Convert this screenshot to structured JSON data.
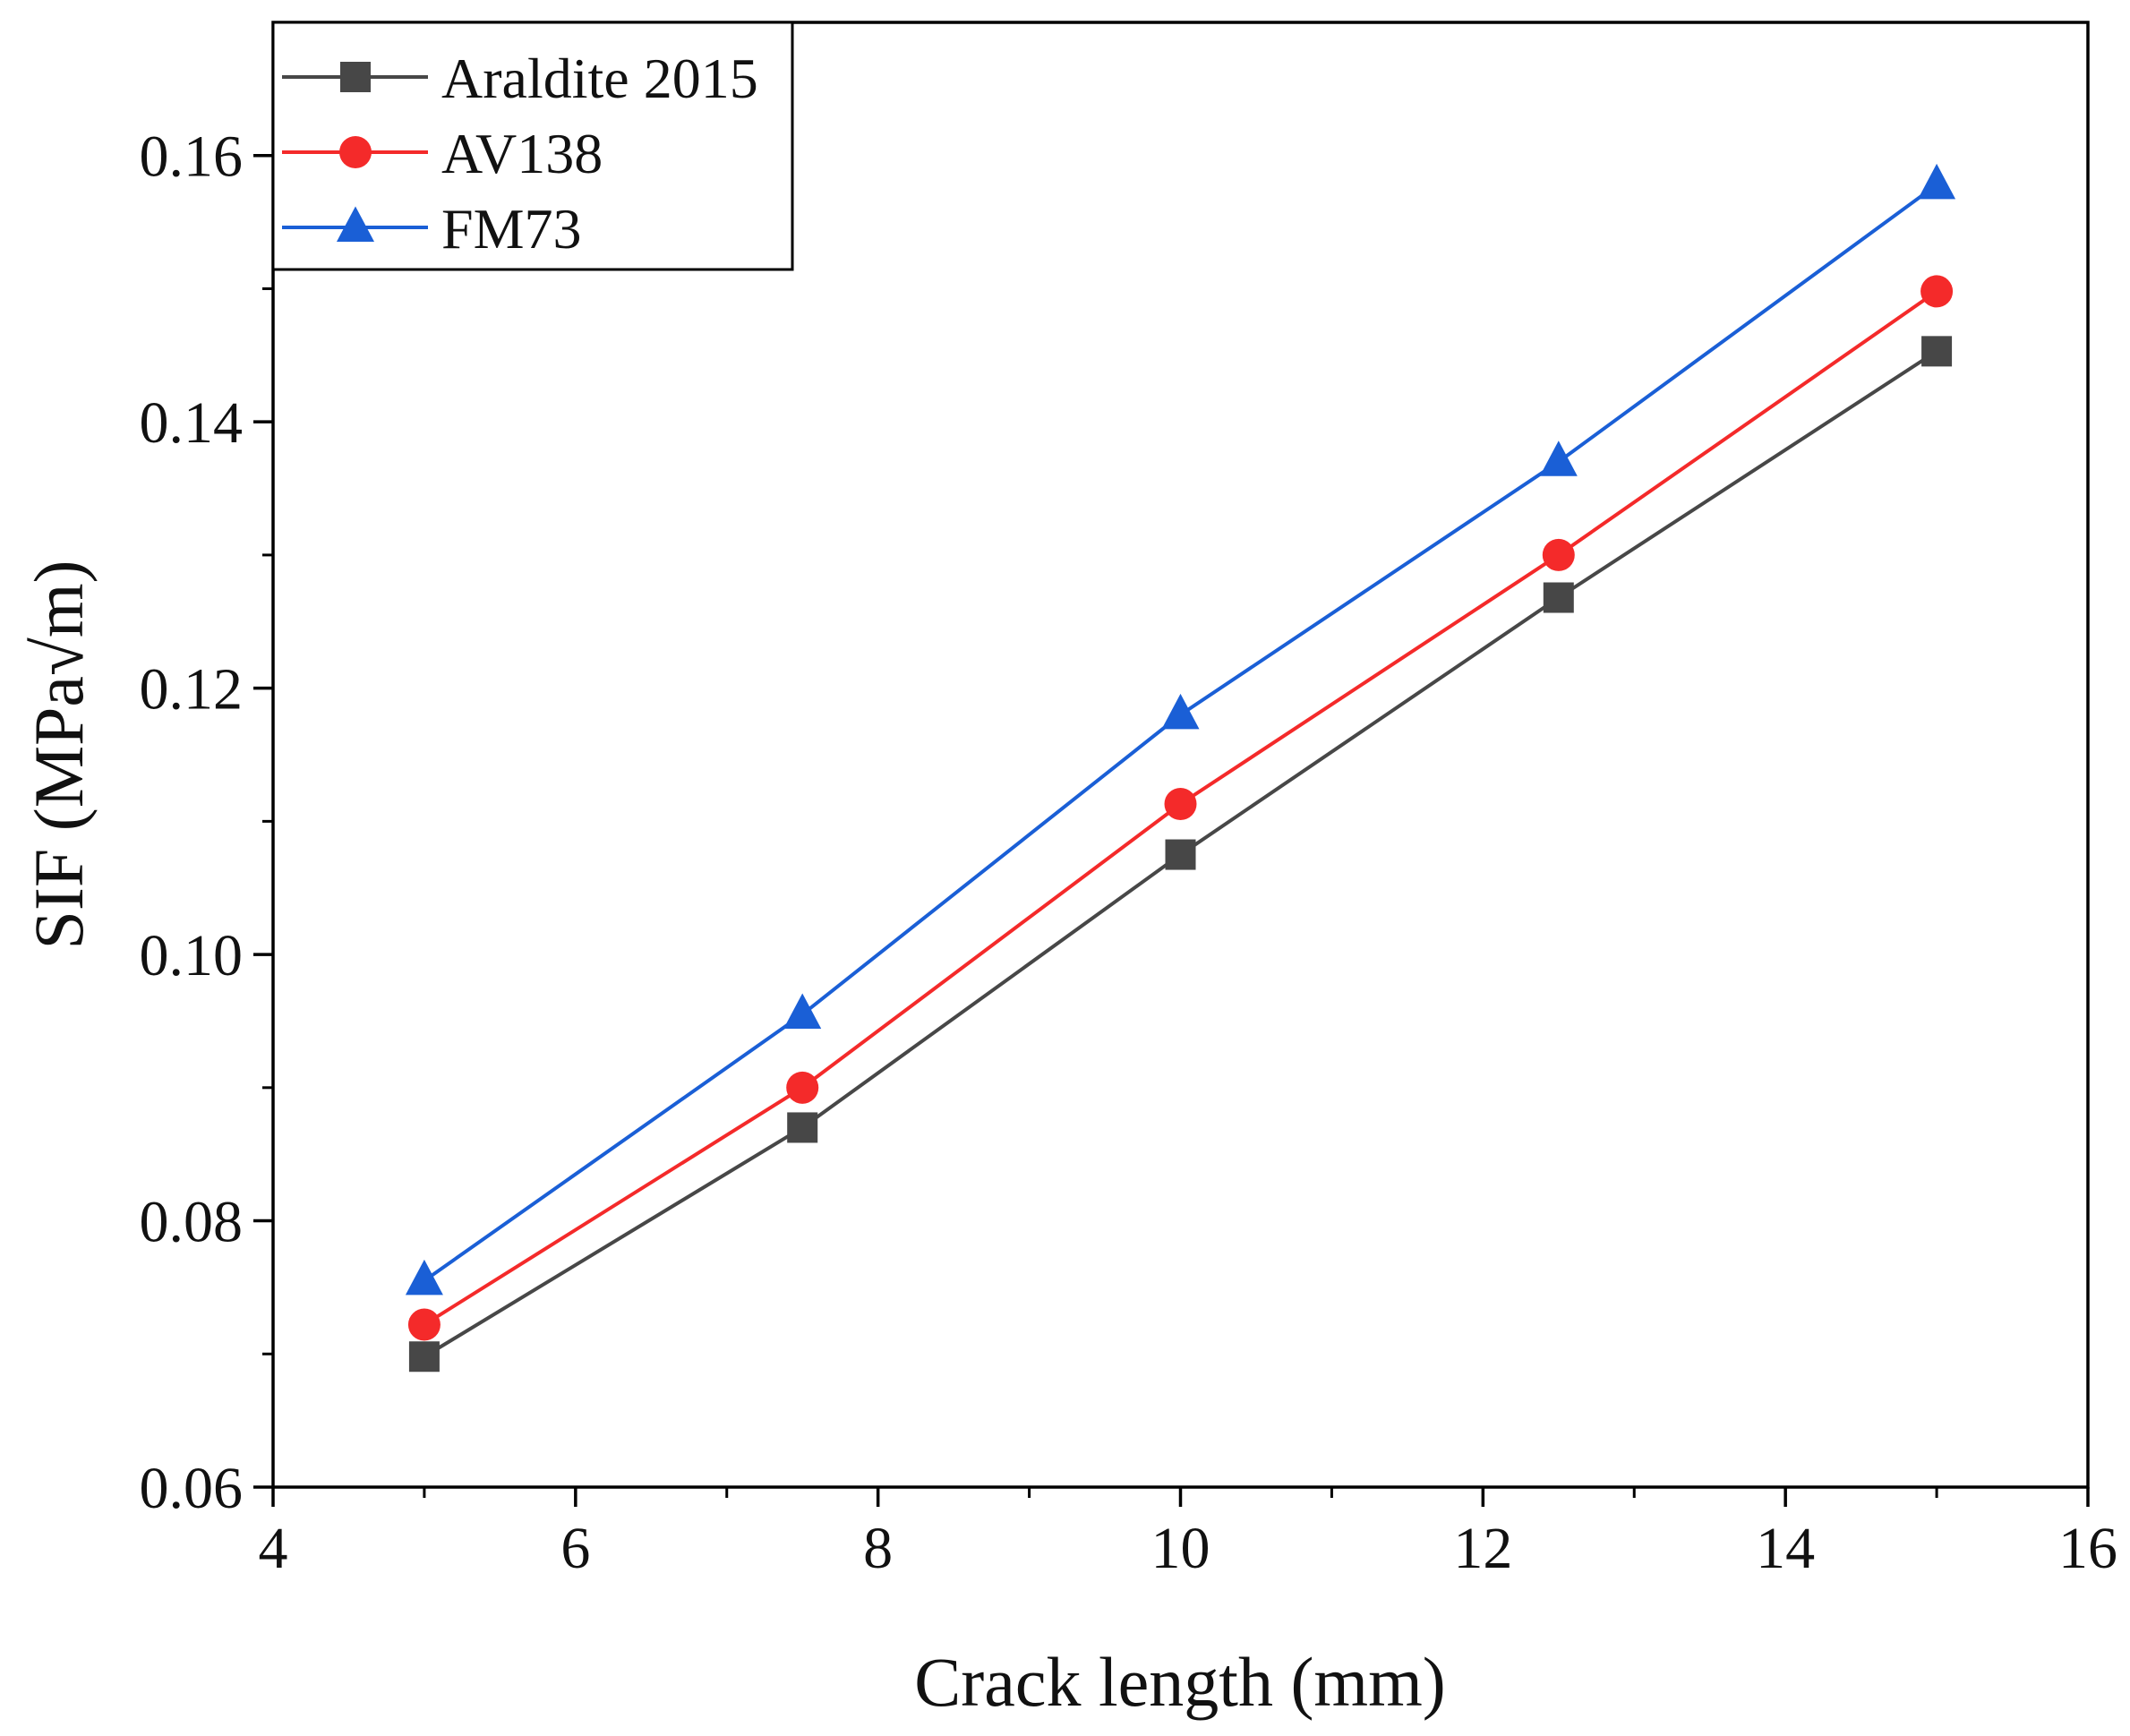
{
  "chart_data": {
    "type": "line",
    "title": "",
    "xlabel": "Crack length (mm)",
    "ylabel": "SIF (MPa√m)",
    "xlim": [
      4,
      16
    ],
    "ylim": [
      0.06,
      0.17
    ],
    "xticks": [
      4,
      6,
      8,
      10,
      12,
      14,
      16
    ],
    "xtick_labels": [
      "4",
      "6",
      "8",
      "10",
      "12",
      "14",
      "16"
    ],
    "yticks": [
      0.06,
      0.08,
      0.1,
      0.12,
      0.14,
      0.16
    ],
    "ytick_labels": [
      "0.06",
      "0.08",
      "0.10",
      "0.12",
      "0.14",
      "0.16"
    ],
    "grid": false,
    "legend_position": "top-left",
    "x": [
      5,
      7.5,
      10,
      12.5,
      15
    ],
    "series": [
      {
        "name": "Araldite 2015",
        "color": "#474747",
        "marker": "square",
        "values": [
          0.0698,
          0.087,
          0.1075,
          0.1268,
          0.1453
        ]
      },
      {
        "name": "AV138",
        "color": "#f42a2a",
        "marker": "circle",
        "values": [
          0.0722,
          0.09,
          0.1113,
          0.13,
          0.1498
        ]
      },
      {
        "name": "FM73",
        "color": "#1a5fd6",
        "marker": "triangle",
        "values": [
          0.0755,
          0.0955,
          0.118,
          0.137,
          0.1578
        ]
      }
    ]
  }
}
